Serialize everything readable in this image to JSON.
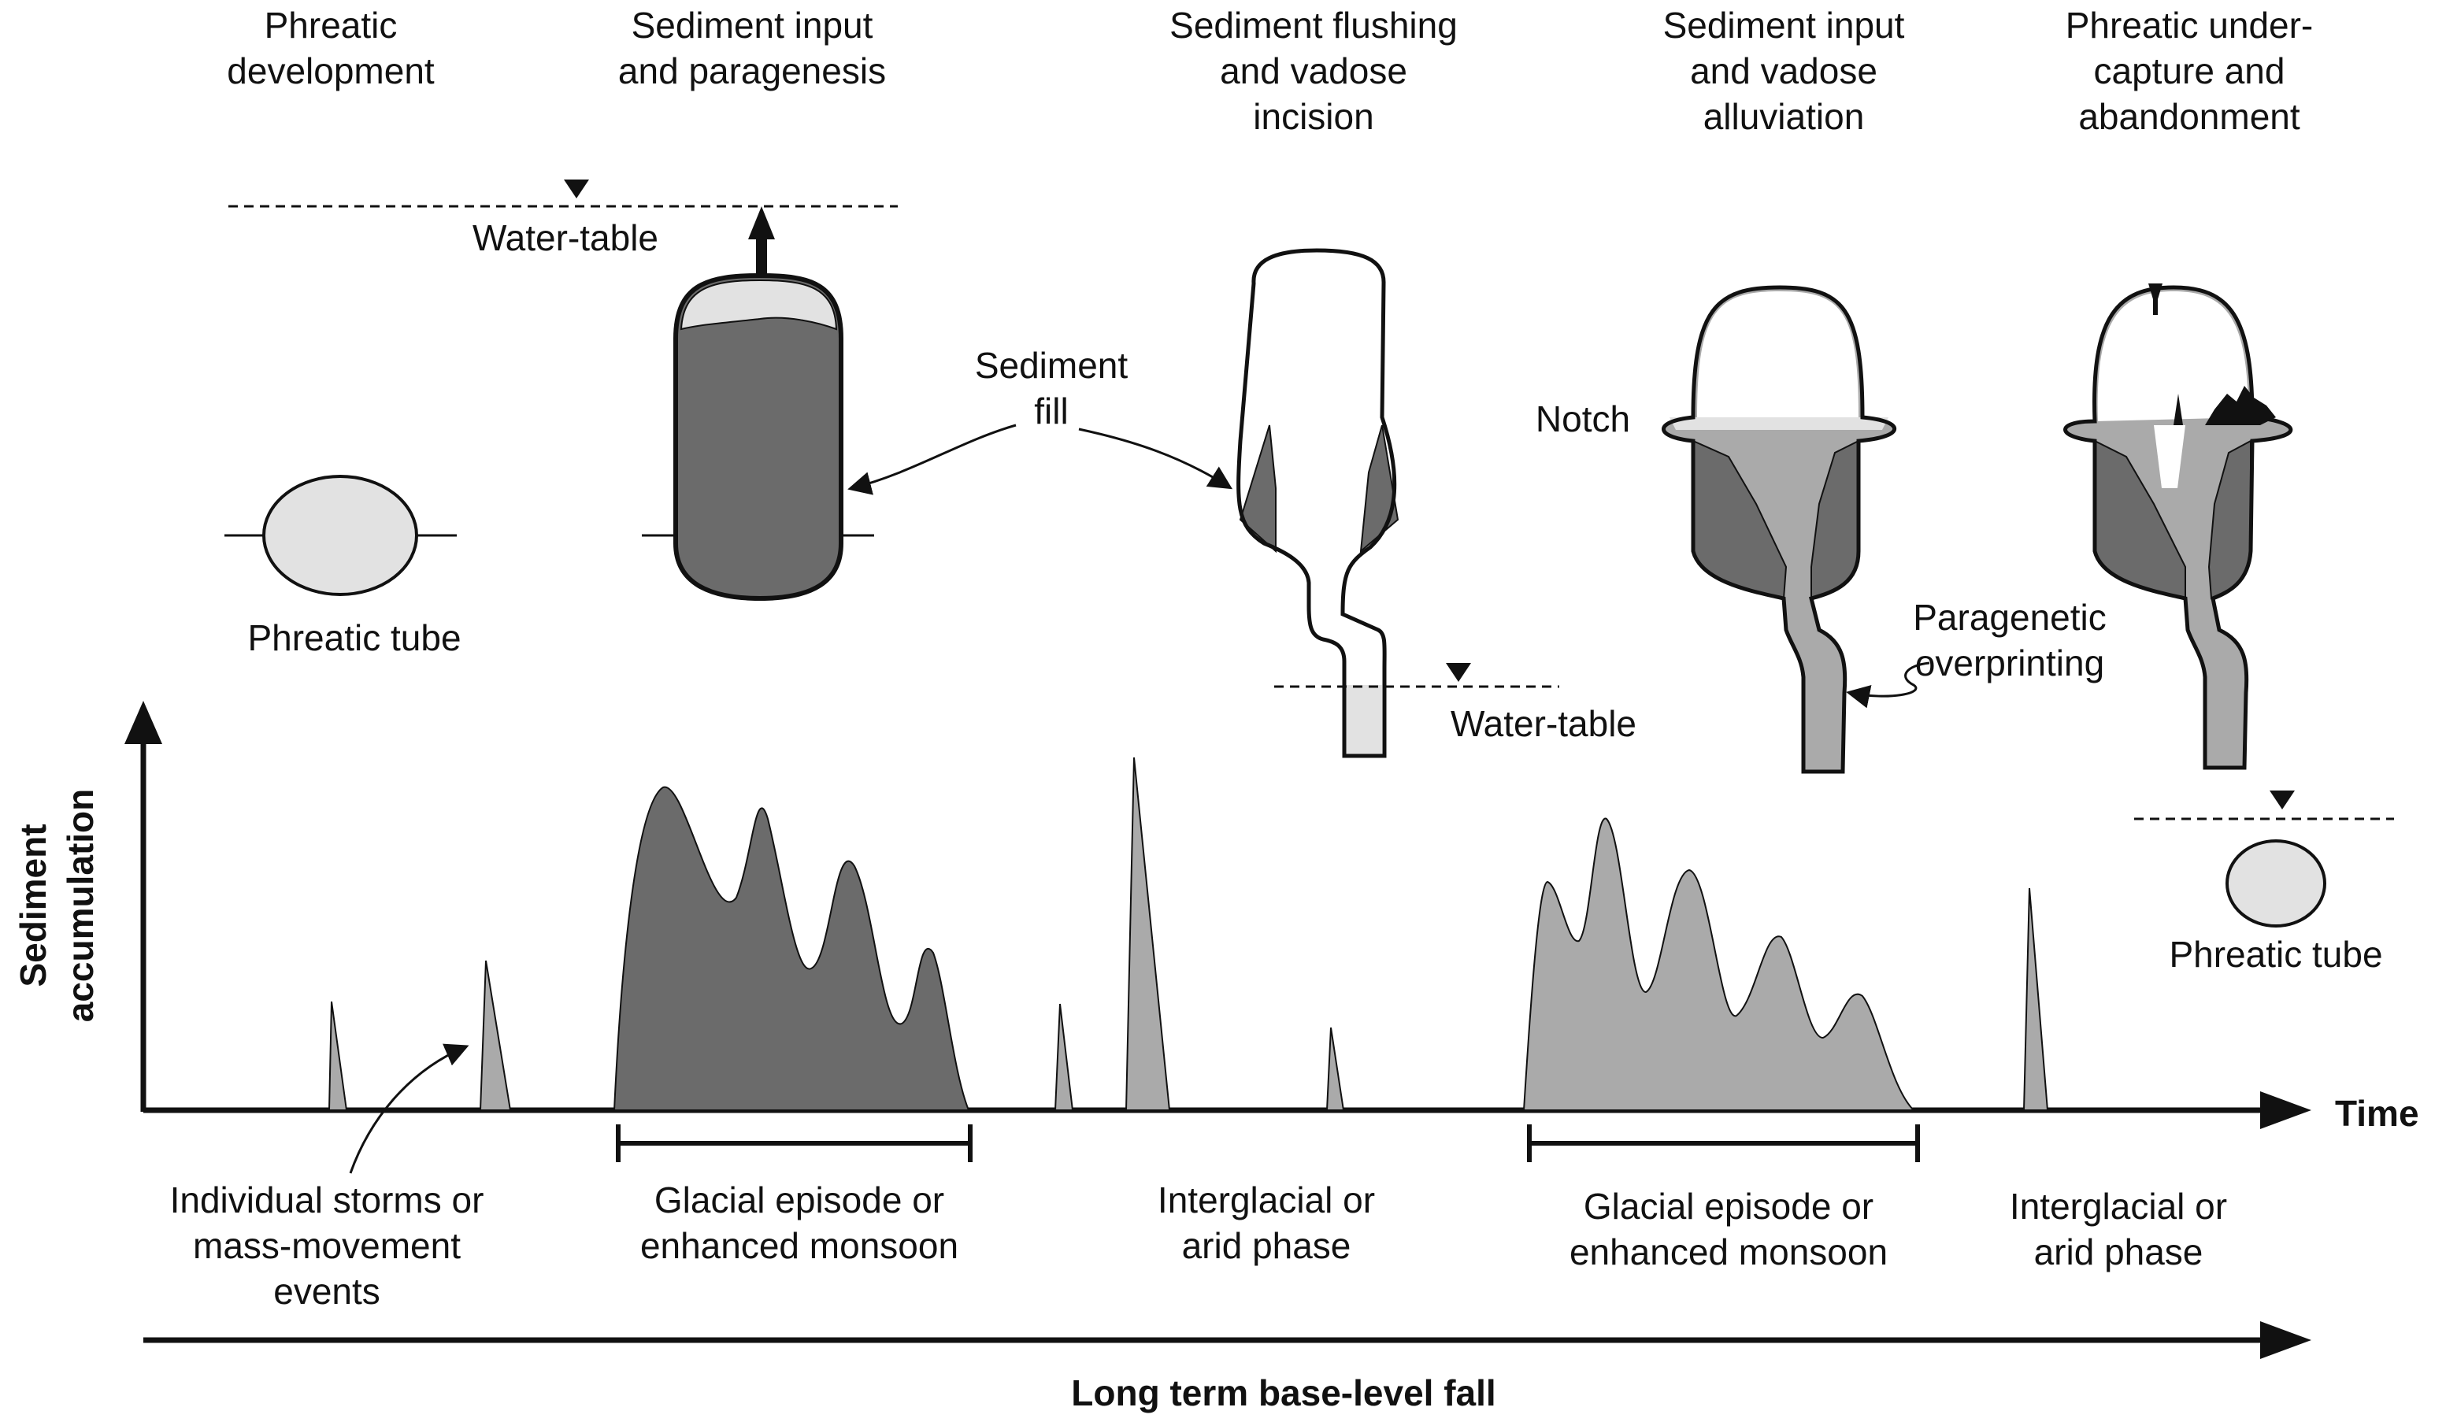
{
  "stages": [
    {
      "line1": "Phreatic",
      "line2": "development",
      "line3": ""
    },
    {
      "line1": "Sediment input",
      "line2": "and paragenesis",
      "line3": ""
    },
    {
      "line1": "Sediment flushing",
      "line2": "and vadose",
      "line3": "incision"
    },
    {
      "line1": "Sediment input",
      "line2": "and vadose",
      "line3": "alluviation"
    },
    {
      "line1": "Phreatic under-",
      "line2": "capture and",
      "line3": "abandonment"
    }
  ],
  "labels": {
    "water_table": "Water-table",
    "sediment_fill_1": "Sediment",
    "sediment_fill_2": "fill",
    "notch": "Notch",
    "phreatic_tube": "Phreatic tube",
    "paragenetic_1": "Paragenetic",
    "paragenetic_2": "overprinting"
  },
  "axes": {
    "y_label_1": "Sediment",
    "y_label_2": "accumulation",
    "x_label": "Time",
    "bottom_label": "Long term base-level fall"
  },
  "phases": [
    {
      "line1": "Individual storms or",
      "line2": "mass-movement",
      "line3": "events"
    },
    {
      "line1": "Glacial episode or",
      "line2": "enhanced monsoon",
      "line3": ""
    },
    {
      "line1": "Interglacial or",
      "line2": "arid phase",
      "line3": ""
    },
    {
      "line1": "Glacial episode or",
      "line2": "enhanced monsoon",
      "line3": ""
    },
    {
      "line1": "Interglacial or",
      "line2": "arid phase",
      "line3": ""
    }
  ],
  "colors": {
    "dark_fill": "#6b6b6b",
    "light_fill": "#aaaaaa",
    "pale_fill": "#e2e2e2",
    "ink": "#111111"
  }
}
